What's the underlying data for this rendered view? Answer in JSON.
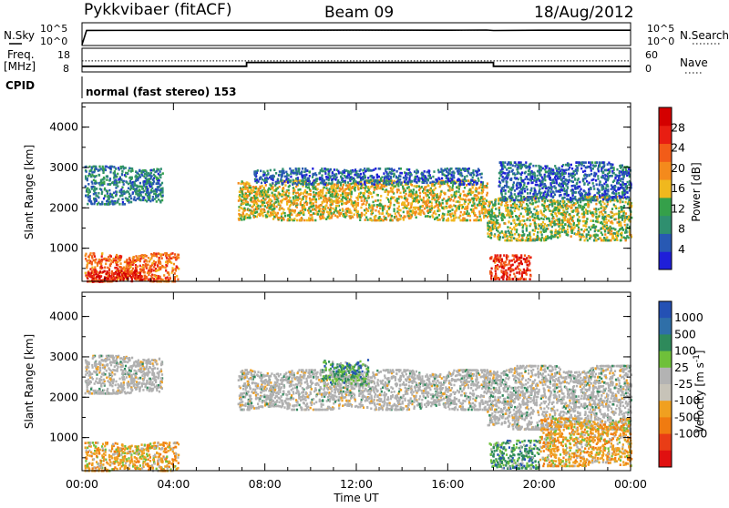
{
  "header": {
    "station": "Pykkvibaer (fitACF)",
    "beam": "Beam 09",
    "date": "18/Aug/2012"
  },
  "top_panels": {
    "nsky_label": "N.Sky",
    "nsearch_label": "N.Search",
    "nsky_ticks": [
      "10^5",
      "10^0"
    ],
    "nsearch_ticks": [
      "10^5",
      "10^0"
    ],
    "freq_label": "Freq.",
    "freq_unit": "[MHz]",
    "freq_ticks": [
      "18",
      "8"
    ],
    "nave_label": "Nave",
    "nave_ticks": [
      "60",
      "0"
    ],
    "cpid_label": "CPID",
    "cpid_text": "normal (fast stereo) 153"
  },
  "colors": {
    "power_scale": [
      "#1f1fd9",
      "#2859b3",
      "#2f8f6f",
      "#35a04a",
      "#f0b81e",
      "#f48a1c",
      "#f25c18",
      "#e81e12",
      "#d40000"
    ],
    "velocity_scale": [
      "#2451b4",
      "#2f6fa8",
      "#2e8a5b",
      "#6fc03a",
      "#b3b3b3",
      "#c7c3b8",
      "#f0a020",
      "#f07b10",
      "#e93d16",
      "#e01010"
    ],
    "ground_scatter": "#b0b0b0"
  },
  "chart_data": [
    {
      "type": "line",
      "name": "sky-noise",
      "x_unit": "hours UT",
      "y_scale": "log",
      "ylim": [
        1,
        100000
      ],
      "x": [
        0,
        0.2,
        4,
        8,
        12,
        16,
        17.7,
        18,
        20,
        24
      ],
      "y_sky": [
        1,
        2500,
        2600,
        2700,
        2800,
        2700,
        3000,
        2400,
        2700,
        2700
      ],
      "y_search": [
        1,
        2300,
        2400,
        2500,
        2600,
        2500,
        2800,
        2300,
        2600,
        2600
      ]
    },
    {
      "type": "line",
      "name": "frequency-nave",
      "x_unit": "hours UT",
      "freq_ylim": [
        8,
        18
      ],
      "nave_ylim": [
        0,
        60
      ],
      "freq_steps": [
        {
          "from": 0,
          "to": 7.2,
          "value": 10.4
        },
        {
          "from": 7.2,
          "to": 18,
          "value": 12.0
        },
        {
          "from": 18,
          "to": 24,
          "value": 10.4
        }
      ],
      "nave_value": 28
    },
    {
      "type": "heatmap",
      "name": "power",
      "title": "Power [dB]",
      "ylabel": "Slant Range [km]",
      "xlim": [
        0,
        24
      ],
      "ylim": [
        180,
        4600
      ],
      "yticks": [
        "1000",
        "2000",
        "3000",
        "4000"
      ],
      "colorbar_ticks": [
        "4",
        "8",
        "12",
        "16",
        "20",
        "24",
        "28"
      ],
      "colorbar_range": [
        0,
        32
      ],
      "regions": [
        {
          "t0": 0.1,
          "t1": 3.5,
          "r0": 2100,
          "r1": 3050,
          "value": 8
        },
        {
          "t0": 0.1,
          "t1": 4.2,
          "r0": 190,
          "r1": 900,
          "value": 22
        },
        {
          "t0": 0.2,
          "t1": 2.6,
          "r0": 190,
          "r1": 500,
          "value": 28
        },
        {
          "t0": 6.8,
          "t1": 17.7,
          "r0": 1700,
          "r1": 2700,
          "value": 16
        },
        {
          "t0": 7.5,
          "t1": 17.5,
          "r0": 2600,
          "r1": 3000,
          "value": 6
        },
        {
          "t0": 17.7,
          "t1": 24,
          "r0": 1200,
          "r1": 2300,
          "value": 14
        },
        {
          "t0": 17.8,
          "t1": 19.6,
          "r0": 250,
          "r1": 850,
          "value": 26
        },
        {
          "t0": 18.2,
          "t1": 24,
          "r0": 2200,
          "r1": 3150,
          "value": 6
        }
      ]
    },
    {
      "type": "heatmap",
      "name": "velocity",
      "title": "Velocity [m s^-1]",
      "ylabel": "Slant Range [km]",
      "xlabel": "Time UT",
      "xlim": [
        0,
        24
      ],
      "ylim": [
        180,
        4600
      ],
      "xticks": [
        "00:00",
        "04:00",
        "08:00",
        "12:00",
        "16:00",
        "20:00",
        "00:00"
      ],
      "yticks": [
        "1000",
        "2000",
        "3000",
        "4000"
      ],
      "colorbar_ticks": [
        "1000",
        "500",
        "100",
        "25",
        "-25",
        "-100",
        "-500",
        "-1000"
      ],
      "regions": [
        {
          "t0": 0.1,
          "t1": 3.5,
          "r0": 2100,
          "r1": 3050,
          "value": 0
        },
        {
          "t0": 0.1,
          "t1": 4.2,
          "r0": 190,
          "r1": 900,
          "value": -300
        },
        {
          "t0": 6.8,
          "t1": 17.7,
          "r0": 1700,
          "r1": 2700,
          "value": 0
        },
        {
          "t0": 10.5,
          "t1": 12.5,
          "r0": 2300,
          "r1": 2950,
          "value": 250
        },
        {
          "t0": 17.7,
          "t1": 24,
          "r0": 1200,
          "r1": 2800,
          "value": 0
        },
        {
          "t0": 17.8,
          "t1": 20.0,
          "r0": 250,
          "r1": 950,
          "value": 150
        },
        {
          "t0": 20.0,
          "t1": 24,
          "r0": 300,
          "r1": 1500,
          "value": -200
        }
      ]
    }
  ]
}
